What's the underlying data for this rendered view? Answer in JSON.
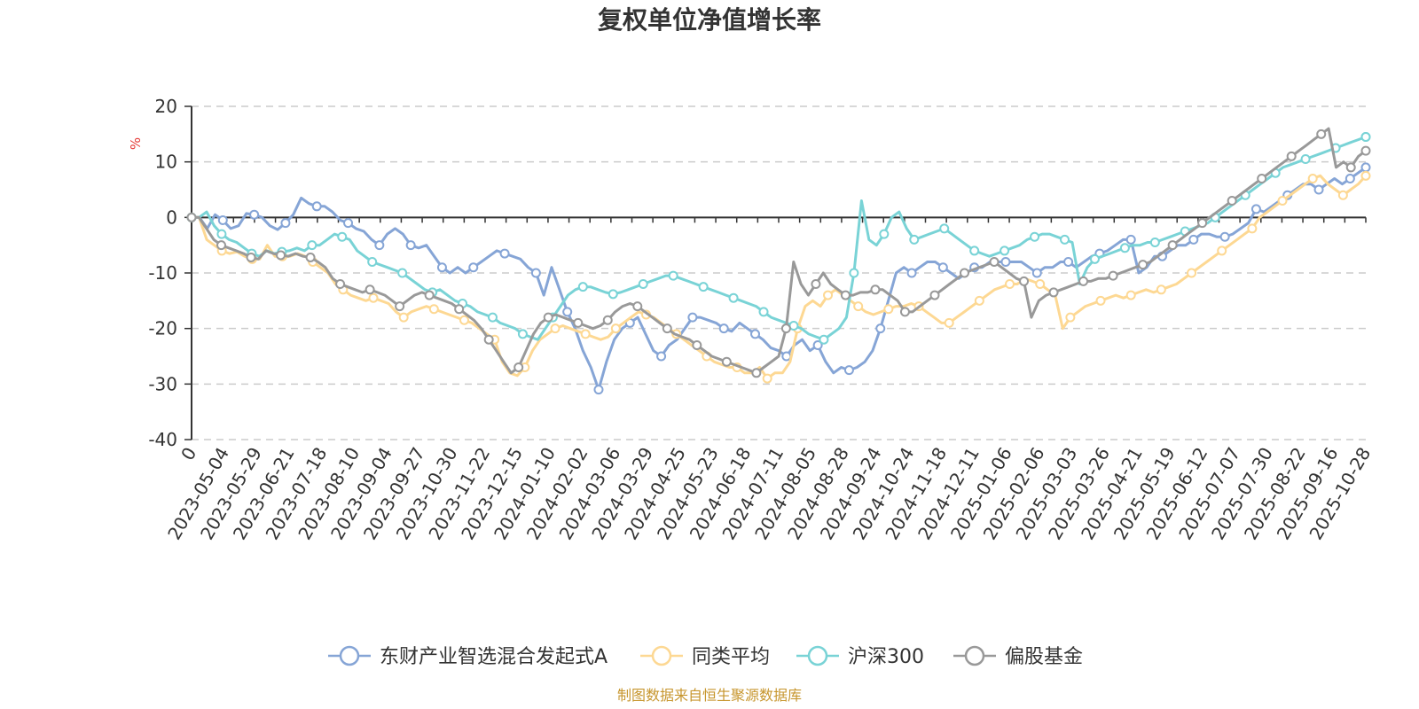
{
  "colors": {
    "series1": "#86a5d6",
    "series2": "#fdd893",
    "series3": "#79d3d6",
    "series4": "#999999",
    "grid": "#cccccc",
    "axis": "#333333",
    "unit": "#e53935",
    "source": "#c7962e"
  },
  "chart_data": {
    "type": "line",
    "title": "复权单位净值增长率",
    "ylabel": "%",
    "ylim": [
      -40,
      20
    ],
    "yticks": [
      20,
      10,
      0,
      -10,
      -20,
      -30,
      -40
    ],
    "x_ticks": [
      "0",
      "2023-05-04",
      "2023-05-29",
      "2023-06-21",
      "2023-07-18",
      "2023-08-10",
      "2023-09-04",
      "2023-09-27",
      "2023-10-30",
      "2023-11-22",
      "2023-12-15",
      "2024-01-10",
      "2024-02-02",
      "2024-03-06",
      "2024-03-29",
      "2024-04-25",
      "2024-05-23",
      "2024-06-18",
      "2024-07-11",
      "2024-08-05",
      "2024-08-28",
      "2024-09-24",
      "2024-10-24",
      "2024-11-18",
      "2024-12-11",
      "2025-01-06",
      "2025-02-06",
      "2025-03-03",
      "2025-03-26",
      "2025-04-21",
      "2025-05-19",
      "2025-06-12",
      "2025-07-07",
      "2025-07-30",
      "2025-08-22",
      "2025-09-16",
      "2025-10-28"
    ],
    "grid": true,
    "legend_position": "bottom",
    "series": [
      {
        "name": "东财产业智选混合发起式A",
        "values": [
          0,
          0,
          -2,
          0.5,
          -0.5,
          -2,
          -1.5,
          0.7,
          0.5,
          0,
          -1.5,
          -2.2,
          -1,
          0.5,
          3.5,
          2.5,
          2,
          2,
          1,
          -0.5,
          -1,
          -2,
          -2.5,
          -4,
          -5,
          -3,
          -2,
          -3,
          -5,
          -5.5,
          -5,
          -7,
          -9,
          -10,
          -9,
          -10,
          -9,
          -8,
          -7,
          -6,
          -6.5,
          -7,
          -7.5,
          -9,
          -10,
          -14,
          -9,
          -13,
          -17,
          -20,
          -24,
          -27,
          -31,
          -26,
          -22,
          -20,
          -19,
          -18,
          -21,
          -24,
          -25,
          -23,
          -22,
          -20,
          -18,
          -18,
          -18.5,
          -19,
          -20,
          -20.5,
          -19,
          -20,
          -21,
          -22,
          -23.5,
          -24,
          -25,
          -23,
          -22,
          -24,
          -23,
          -26,
          -28,
          -27,
          -27.5,
          -27,
          -26,
          -24,
          -20,
          -15,
          -10,
          -9,
          -10,
          -9,
          -8,
          -8,
          -9,
          -10,
          -11,
          -10,
          -9,
          -9,
          -8,
          -8,
          -8,
          -8,
          -8,
          -9,
          -10,
          -9,
          -9,
          -8,
          -8,
          -9,
          -8,
          -7,
          -6.5,
          -6,
          -5,
          -4,
          -4,
          -10,
          -9,
          -7,
          -7,
          -6,
          -5,
          -5,
          -4,
          -3,
          -3,
          -3.5,
          -3.5,
          -3,
          -2,
          -1,
          1.5,
          1,
          2,
          3,
          4,
          5,
          6,
          6,
          5,
          6,
          7,
          6,
          7,
          8,
          9
        ]
      },
      {
        "name": "同类平均",
        "values": [
          0,
          0,
          -4,
          -5,
          -6,
          -6.5,
          -6.2,
          -7,
          -7.5,
          -7.5,
          -5,
          -7,
          -7,
          -7,
          -6.5,
          -7,
          -8,
          -9,
          -10,
          -12,
          -13,
          -14,
          -14.5,
          -15,
          -14.5,
          -15,
          -15.5,
          -17,
          -18,
          -17,
          -16.5,
          -16,
          -16.5,
          -17,
          -17.5,
          -18,
          -18.5,
          -19,
          -20,
          -21,
          -22,
          -26,
          -28,
          -28.5,
          -27,
          -24,
          -22,
          -21,
          -20,
          -19.5,
          -20,
          -20.5,
          -21,
          -21.5,
          -22,
          -21.5,
          -20,
          -19,
          -18,
          -17,
          -17.5,
          -18,
          -19,
          -20,
          -21,
          -22,
          -23,
          -24,
          -25,
          -26,
          -26.5,
          -27,
          -27,
          -28,
          -28,
          -27,
          -29,
          -28,
          -28,
          -26,
          -20,
          -16,
          -15,
          -16,
          -14,
          -13,
          -14,
          -15,
          -16,
          -17,
          -17.5,
          -17,
          -16.5,
          -16,
          -16,
          -15.5,
          -16,
          -17,
          -18,
          -19,
          -19,
          -18,
          -17,
          -16,
          -15,
          -14,
          -13,
          -12.5,
          -12,
          -12,
          -11,
          -11.5,
          -12,
          -13,
          -14,
          -20,
          -18,
          -17,
          -16,
          -15.5,
          -15,
          -14.5,
          -14,
          -14.5,
          -14,
          -13.5,
          -13,
          -13.5,
          -13,
          -12.5,
          -12,
          -11,
          -10,
          -9,
          -8,
          -7,
          -6,
          -5,
          -4,
          -3,
          -2,
          0,
          1,
          2,
          3,
          4,
          5,
          6,
          7,
          7.5,
          6,
          5,
          4,
          5,
          6,
          7.5
        ]
      },
      {
        "name": "沪深300",
        "values": [
          0,
          0,
          1,
          -1.5,
          -3,
          -4,
          -4.5,
          -5.5,
          -6.5,
          -7,
          -6,
          -6.5,
          -6.2,
          -6,
          -5.5,
          -6,
          -5,
          -5,
          -4,
          -3,
          -3.5,
          -4,
          -6,
          -7,
          -8,
          -8.5,
          -9,
          -9.5,
          -10,
          -11,
          -12,
          -13,
          -13.5,
          -13,
          -14,
          -15,
          -15.5,
          -16,
          -17,
          -17.5,
          -18,
          -19,
          -19.5,
          -20,
          -21,
          -21.5,
          -22,
          -20,
          -18,
          -16,
          -14,
          -13,
          -12.5,
          -12.5,
          -13,
          -13.5,
          -13.8,
          -13.5,
          -13,
          -12.5,
          -12,
          -11.5,
          -11,
          -10.5,
          -10.5,
          -11,
          -11.5,
          -12,
          -12.5,
          -13,
          -13.5,
          -14,
          -14.5,
          -15,
          -15.5,
          -16,
          -17,
          -18,
          -18.5,
          -19,
          -19.5,
          -20,
          -21,
          -21.5,
          -22,
          -21,
          -20,
          -18,
          -10,
          3,
          -4,
          -5,
          -3,
          0,
          1,
          -2,
          -4,
          -3.5,
          -3,
          -2.5,
          -2,
          -3,
          -4,
          -5,
          -6,
          -6.5,
          -7,
          -6.5,
          -6,
          -5.5,
          -5,
          -4,
          -3.5,
          -3,
          -3,
          -3.5,
          -4,
          -4.5,
          -12,
          -9,
          -7.5,
          -7,
          -6.5,
          -6,
          -5.5,
          -5,
          -5,
          -4.5,
          -4.5,
          -4,
          -3.5,
          -3,
          -2.5,
          -2,
          -1.5,
          -1,
          0,
          1,
          2,
          3,
          4,
          5,
          6,
          7,
          8,
          9,
          9.5,
          10,
          10.5,
          11,
          11.5,
          12,
          12.5,
          13,
          13.5,
          14,
          14.5
        ]
      },
      {
        "name": "偏股基金",
        "values": [
          0,
          0,
          -2,
          -4,
          -5,
          -5.5,
          -6,
          -6.5,
          -7.2,
          -7.5,
          -6,
          -6.5,
          -6.8,
          -7,
          -6.5,
          -7,
          -7.2,
          -8,
          -9,
          -11,
          -12,
          -12.5,
          -13,
          -13.5,
          -13,
          -13.5,
          -14,
          -15,
          -16,
          -15,
          -14,
          -13.5,
          -14,
          -14.5,
          -15,
          -15.5,
          -16.5,
          -17.5,
          -18.5,
          -20,
          -22,
          -24,
          -26,
          -28,
          -27,
          -24,
          -21,
          -19,
          -18,
          -17.5,
          -18,
          -18.5,
          -19,
          -19.5,
          -20,
          -19.5,
          -18.5,
          -17,
          -16,
          -15.5,
          -16,
          -17,
          -18,
          -19,
          -20,
          -21,
          -21.5,
          -22,
          -23,
          -24,
          -25,
          -25.5,
          -26,
          -26.5,
          -27,
          -27.5,
          -28,
          -27,
          -26,
          -25,
          -20,
          -8,
          -12,
          -14,
          -12,
          -10,
          -12,
          -13,
          -14,
          -14,
          -13.5,
          -13.5,
          -13,
          -13,
          -14,
          -15,
          -17,
          -17,
          -16,
          -15,
          -14,
          -13,
          -12,
          -11,
          -10,
          -9.5,
          -9,
          -8.5,
          -8,
          -9,
          -10,
          -11,
          -11.5,
          -18,
          -15,
          -14,
          -13.5,
          -13,
          -12.5,
          -12,
          -11.5,
          -11.5,
          -11,
          -11,
          -10.5,
          -10,
          -9.5,
          -9,
          -8.5,
          -8,
          -7,
          -6,
          -5,
          -4,
          -3,
          -2,
          -1,
          0,
          1,
          2,
          3,
          4,
          5,
          6,
          7,
          8,
          9,
          10,
          11,
          12,
          13,
          14,
          15,
          16,
          9,
          10,
          9,
          11,
          12
        ]
      }
    ]
  },
  "source_text": "制图数据来自恒生聚源数据库"
}
